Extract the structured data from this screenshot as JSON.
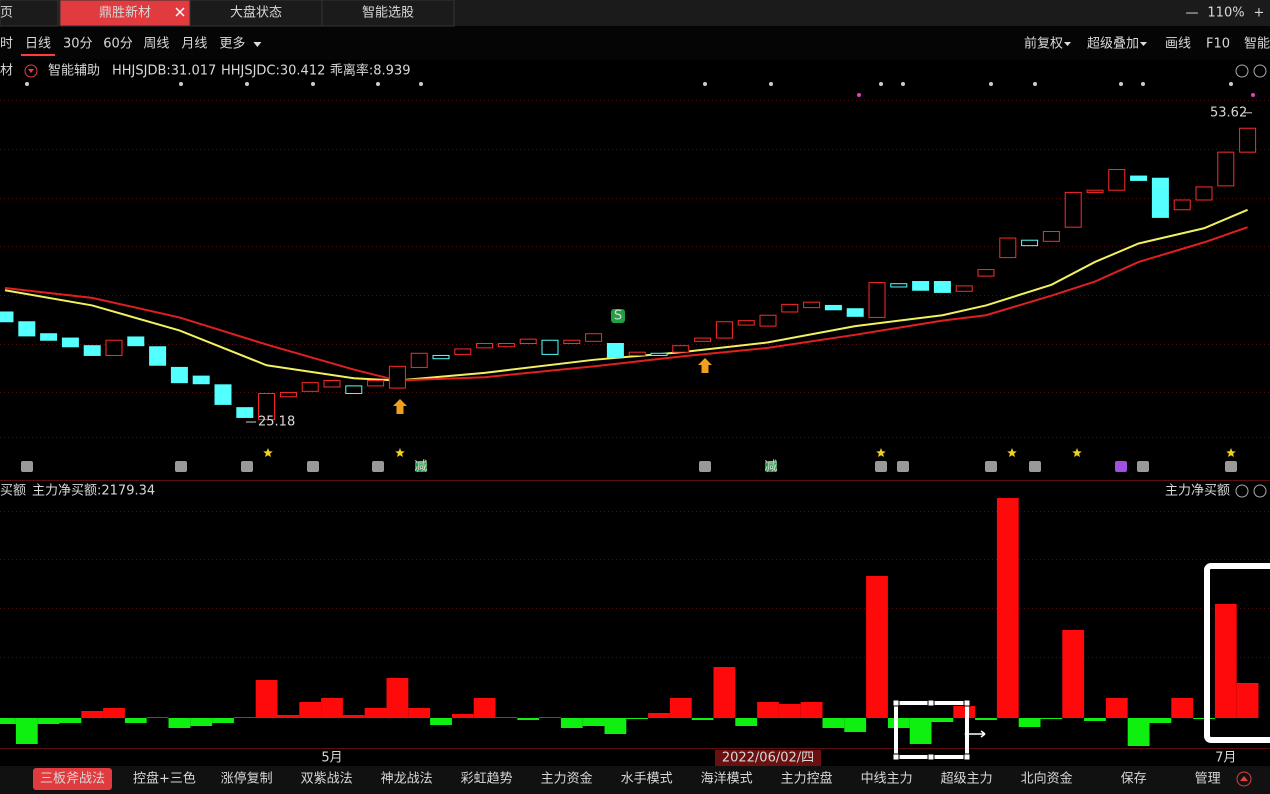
{
  "tabs": {
    "items": [
      "页",
      "鼎胜新材",
      "大盘状态",
      "智能选股"
    ],
    "active": 1,
    "zoom_out": "—",
    "zoom": "110%",
    "zoom_in": "+"
  },
  "periods": {
    "items": [
      "时",
      "日线",
      "30分",
      "60分",
      "周线",
      "月线",
      "更多"
    ],
    "active": 1
  },
  "tools": [
    "前复权",
    "超级叠加",
    "画线",
    "F10",
    "智能"
  ],
  "indicator_bar": {
    "name_cut": "材",
    "assist": "智能辅助",
    "items": [
      {
        "text": "HHJSJDB:31.017",
        "color": "#e6e64c"
      },
      {
        "text": "HHJSJDC:30.412",
        "color": "#f03030"
      },
      {
        "text": "乖离率:8.939",
        "color": "#e6e64c"
      }
    ]
  },
  "signal_labels": {
    "reduce": "减",
    "sell": "S"
  },
  "chart_data": {
    "type": "candlestick",
    "ylim": [
      23.8,
      58.2
    ],
    "price_high_label": 53.62,
    "price_low_label": 25.18,
    "up_color": "#ff2a2a",
    "down_color": "#54ffff",
    "open": [
      35.3,
      34.4,
      33.3,
      32.9,
      32.2,
      31.3,
      33.0,
      32.1,
      30.2,
      29.4,
      28.6,
      26.5,
      25.4,
      27.5,
      28.0,
      28.4,
      27.8,
      28.5,
      28.3,
      30.2,
      31.0,
      31.4,
      32.0,
      32.1,
      32.4,
      31.4,
      32.4,
      32.6,
      32.4,
      31.3,
      31.3,
      31.6,
      32.6,
      32.9,
      34.1,
      34.0,
      35.3,
      35.7,
      35.9,
      35.6,
      34.8,
      37.6,
      38.1,
      38.1,
      37.2,
      38.6,
      40.3,
      41.4,
      41.8,
      43.1,
      46.3,
      46.5,
      47.8,
      47.6,
      44.7,
      45.6,
      46.9,
      50.0
    ],
    "close": [
      34.4,
      33.1,
      32.7,
      32.1,
      31.3,
      32.7,
      32.2,
      30.4,
      28.8,
      28.7,
      26.8,
      25.6,
      27.8,
      27.9,
      28.8,
      29.0,
      28.5,
      29.0,
      30.3,
      31.5,
      31.3,
      31.9,
      32.4,
      32.4,
      32.8,
      32.7,
      32.7,
      33.3,
      31.1,
      31.6,
      31.5,
      32.2,
      32.9,
      34.4,
      34.5,
      35.0,
      36.0,
      36.2,
      35.5,
      34.9,
      38.0,
      37.9,
      37.3,
      37.1,
      37.7,
      39.2,
      42.1,
      41.9,
      42.7,
      46.3,
      46.5,
      48.4,
      47.4,
      44.0,
      45.6,
      46.8,
      50.0,
      52.2
    ],
    "ma_x": [
      0,
      4,
      8,
      12,
      16,
      18,
      22,
      27,
      31,
      35,
      39,
      43,
      45,
      48,
      50,
      52,
      55,
      57
    ],
    "ma": [
      {
        "color": "#f0f060",
        "values": [
          37.3,
          35.9,
          33.6,
          30.4,
          29.2,
          29.0,
          29.7,
          30.9,
          31.6,
          32.5,
          34.0,
          35.0,
          35.9,
          37.8,
          39.9,
          41.6,
          43.0,
          44.7
        ]
      },
      {
        "color": "#e02020",
        "values": [
          37.5,
          36.6,
          34.8,
          32.3,
          30.0,
          29.0,
          29.3,
          30.3,
          31.2,
          32.0,
          33.2,
          34.5,
          35.0,
          36.8,
          38.1,
          39.9,
          41.7,
          43.1
        ]
      }
    ],
    "categories": [
      null,
      null,
      null,
      null,
      null,
      null,
      null,
      null,
      null,
      null,
      null,
      null,
      null,
      null,
      null,
      "5月",
      null,
      null,
      null,
      null,
      null,
      null,
      null,
      null,
      null,
      null,
      null,
      null,
      null,
      null,
      null,
      null,
      null,
      null,
      null,
      "2022/06/02/四",
      null,
      null,
      null,
      null,
      null,
      null,
      null,
      null,
      null,
      null,
      null,
      null,
      null,
      null,
      null,
      null,
      null,
      null,
      null,
      null,
      "7月",
      null
    ],
    "highlight_category": 35,
    "flow": {
      "name_cut": "买额",
      "title": "主力净买额:2179.34",
      "right_title": "主力净买额",
      "ylim": [
        -1868,
        14198
      ],
      "values": [
        -374,
        -1619,
        -374,
        -311,
        436,
        623,
        -311,
        62,
        -623,
        -498,
        -311,
        62,
        2366,
        187,
        996,
        1245,
        187,
        623,
        2491,
        623,
        -436,
        249,
        1245,
        62,
        -125,
        62,
        -623,
        -498,
        -996,
        -62,
        311,
        1245,
        -125,
        3176,
        -498,
        996,
        872,
        996,
        -623,
        -872,
        8842,
        -623,
        -1619,
        -249,
        747,
        -125,
        13699,
        -560,
        -62,
        5480,
        -187,
        1245,
        -1744,
        -311,
        1245,
        -62,
        7099,
        2179.34
      ]
    }
  },
  "strategies": {
    "items": [
      "三板斧战法",
      "控盘+三色",
      "涨停复制",
      "双紫战法",
      "神龙战法",
      "彩虹趋势",
      "主力资金",
      "水手模式",
      "海洋模式",
      "主力控盘",
      "中线主力",
      "超级主力",
      "北向资金",
      "保存",
      "管理"
    ],
    "active": 0
  }
}
